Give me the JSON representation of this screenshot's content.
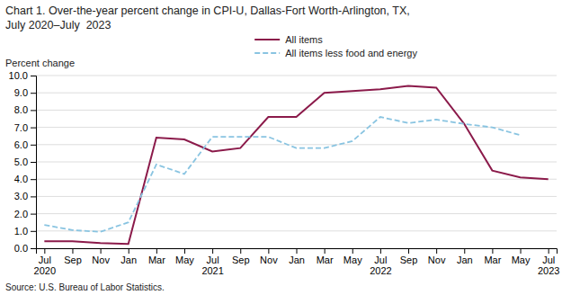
{
  "chart_data": {
    "type": "line",
    "title": "Chart 1. Over-the-year percent change in CPI-U, Dallas-Fort Worth-Arlington, TX,",
    "subtitle": "July 2020–July  2023",
    "y_label": "Percent change",
    "annotations": [
      "Source: U.S. Bureau of Labor Statistics."
    ],
    "categories": [
      "Jul 2020",
      "Sep",
      "Nov",
      "Jan",
      "Mar",
      "May",
      "Jul 2021",
      "Sep",
      "Nov",
      "Jan",
      "Mar",
      "May",
      "Jul 2022",
      "Sep",
      "Nov",
      "Jan",
      "Mar",
      "May",
      "Jul 2023"
    ],
    "series": [
      {
        "name": "All items",
        "color": "#8B1A4A",
        "line_style": "solid",
        "values": [
          0.4,
          0.4,
          0.3,
          0.25,
          6.4,
          6.3,
          5.6,
          5.8,
          7.6,
          7.6,
          9.0,
          9.1,
          9.2,
          9.4,
          9.3,
          7.2,
          4.5,
          4.1,
          4.0
        ]
      },
      {
        "name": "All items less food and energy",
        "color": "#89C4E1",
        "line_style": "dashed",
        "values": [
          1.35,
          1.05,
          0.95,
          1.5,
          4.85,
          4.3,
          6.45,
          6.45,
          6.45,
          5.8,
          5.8,
          6.2,
          7.6,
          7.25,
          7.45,
          7.2,
          7.0,
          6.55,
          null
        ]
      }
    ],
    "ylim": [
      0.0,
      10.0
    ],
    "yticks": [
      {
        "value": 0,
        "label": "0.0"
      },
      {
        "value": 1,
        "label": "1.0"
      },
      {
        "value": 2,
        "label": "2.0"
      },
      {
        "value": 3,
        "label": "3.0"
      },
      {
        "value": 4,
        "label": "4.0"
      },
      {
        "value": 5,
        "label": "5.0"
      },
      {
        "value": 6,
        "label": "6.0"
      },
      {
        "value": 7,
        "label": "7.0"
      },
      {
        "value": 8,
        "label": "8.0"
      },
      {
        "value": 9,
        "label": "9.0"
      },
      {
        "value": 10,
        "label": "10.0"
      }
    ],
    "grid": true,
    "legend": "top"
  }
}
